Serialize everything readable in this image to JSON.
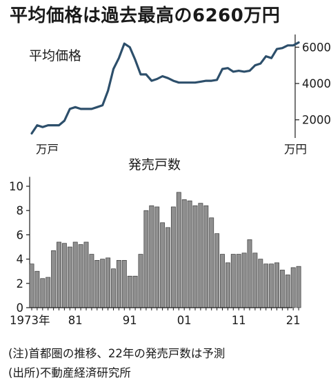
{
  "figure": {
    "title": "平均価格は過去最高の6260万円",
    "note": "(注)首都圏の推移、22年の発売戸数は予測",
    "source": "(出所)不動産経済研究所"
  },
  "chart_data": [
    {
      "type": "line",
      "title": "平均価格",
      "ylabel": "万円",
      "ylim": [
        1000,
        6700
      ],
      "yticks": [
        2000,
        4000,
        6000
      ],
      "color": "#2d4f6b",
      "x": [
        1973,
        1974,
        1975,
        1976,
        1977,
        1978,
        1979,
        1980,
        1981,
        1982,
        1983,
        1984,
        1985,
        1986,
        1987,
        1988,
        1989,
        1990,
        1991,
        1992,
        1993,
        1994,
        1995,
        1996,
        1997,
        1998,
        1999,
        2000,
        2001,
        2002,
        2003,
        2004,
        2005,
        2006,
        2007,
        2008,
        2009,
        2010,
        2011,
        2012,
        2013,
        2014,
        2015,
        2016,
        2017,
        2018,
        2019,
        2020,
        2021,
        2022
      ],
      "y": [
        1250,
        1700,
        1600,
        1700,
        1700,
        1700,
        1950,
        2600,
        2700,
        2600,
        2600,
        2600,
        2700,
        2800,
        3600,
        4800,
        5400,
        6200,
        6000,
        5300,
        4500,
        4500,
        4150,
        4250,
        4400,
        4300,
        4150,
        4050,
        4050,
        4050,
        4050,
        4100,
        4150,
        4150,
        4200,
        4800,
        4850,
        4650,
        4700,
        4650,
        4700,
        5000,
        5100,
        5500,
        5400,
        5900,
        5950,
        6100,
        6100,
        6260
      ]
    },
    {
      "type": "bar",
      "title": "発売戸数",
      "ylabel": "万戸",
      "ylim": [
        0,
        11
      ],
      "yticks": [
        0,
        2,
        4,
        6,
        8,
        10
      ],
      "color": "#8f8f8f",
      "x_tick_labels": [
        {
          "year": 1973,
          "label": "1973年"
        },
        {
          "year": 1981,
          "label": "81"
        },
        {
          "year": 1991,
          "label": "91"
        },
        {
          "year": 2001,
          "label": "01"
        },
        {
          "year": 2011,
          "label": "11"
        },
        {
          "year": 2021,
          "label": "21"
        }
      ],
      "categories": [
        1973,
        1974,
        1975,
        1976,
        1977,
        1978,
        1979,
        1980,
        1981,
        1982,
        1983,
        1984,
        1985,
        1986,
        1987,
        1988,
        1989,
        1990,
        1991,
        1992,
        1993,
        1994,
        1995,
        1996,
        1997,
        1998,
        1999,
        2000,
        2001,
        2002,
        2003,
        2004,
        2005,
        2006,
        2007,
        2008,
        2009,
        2010,
        2011,
        2012,
        2013,
        2014,
        2015,
        2016,
        2017,
        2018,
        2019,
        2020,
        2021,
        2022
      ],
      "values": [
        3.6,
        3.0,
        2.4,
        2.5,
        4.7,
        5.4,
        5.3,
        5.0,
        5.4,
        5.2,
        5.4,
        4.4,
        3.9,
        4.0,
        4.1,
        3.2,
        3.9,
        3.9,
        2.6,
        2.6,
        4.4,
        8.0,
        8.4,
        8.3,
        7.0,
        6.6,
        8.3,
        9.5,
        8.9,
        8.8,
        8.4,
        8.6,
        8.4,
        7.4,
        6.1,
        4.4,
        3.7,
        4.4,
        4.4,
        4.5,
        5.6,
        4.5,
        4.0,
        3.6,
        3.6,
        3.7,
        3.1,
        2.7,
        3.3,
        3.4
      ]
    }
  ]
}
